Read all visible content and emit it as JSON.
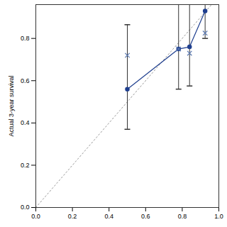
{
  "chart_data": {
    "type": "calibration",
    "y_label": "Actual 3-year survival",
    "x": [
      0.5,
      0.78,
      0.84,
      0.925
    ],
    "series": [
      {
        "type": "line",
        "marker": "circle",
        "color": "#1f3f8f",
        "values": [
          0.56,
          0.75,
          0.76,
          0.93
        ],
        "error_low": [
          0.37,
          0.56,
          0.575,
          0.8
        ],
        "error_high": [
          0.865,
          1.0,
          1.0,
          1.0
        ]
      },
      {
        "type": "scatter",
        "marker": "cross",
        "color": "#5a78b0",
        "values": [
          0.72,
          0.75,
          0.73,
          0.825
        ]
      }
    ],
    "reference": {
      "x": [
        0,
        1
      ],
      "y": [
        0,
        1
      ],
      "line_style": "dotted",
      "color": "#999999"
    },
    "xlim": [
      0,
      1
    ],
    "ylim": [
      0,
      0.96
    ],
    "xticks": [
      {
        "value": 0,
        "label": "0.0"
      },
      {
        "value": 0.2,
        "label": "0.2"
      },
      {
        "value": 0.4,
        "label": "0.4"
      },
      {
        "value": 0.6,
        "label": "0.6"
      },
      {
        "value": 0.8,
        "label": "0.8"
      },
      {
        "value": 1,
        "label": "1.0"
      }
    ],
    "yticks": [
      {
        "value": 0,
        "label": "0.0"
      },
      {
        "value": 0.2,
        "label": "0.2"
      },
      {
        "value": 0.4,
        "label": "0.4"
      },
      {
        "value": 0.6,
        "label": "0.6"
      },
      {
        "value": 0.8,
        "label": "0.8"
      }
    ],
    "grid": false
  }
}
